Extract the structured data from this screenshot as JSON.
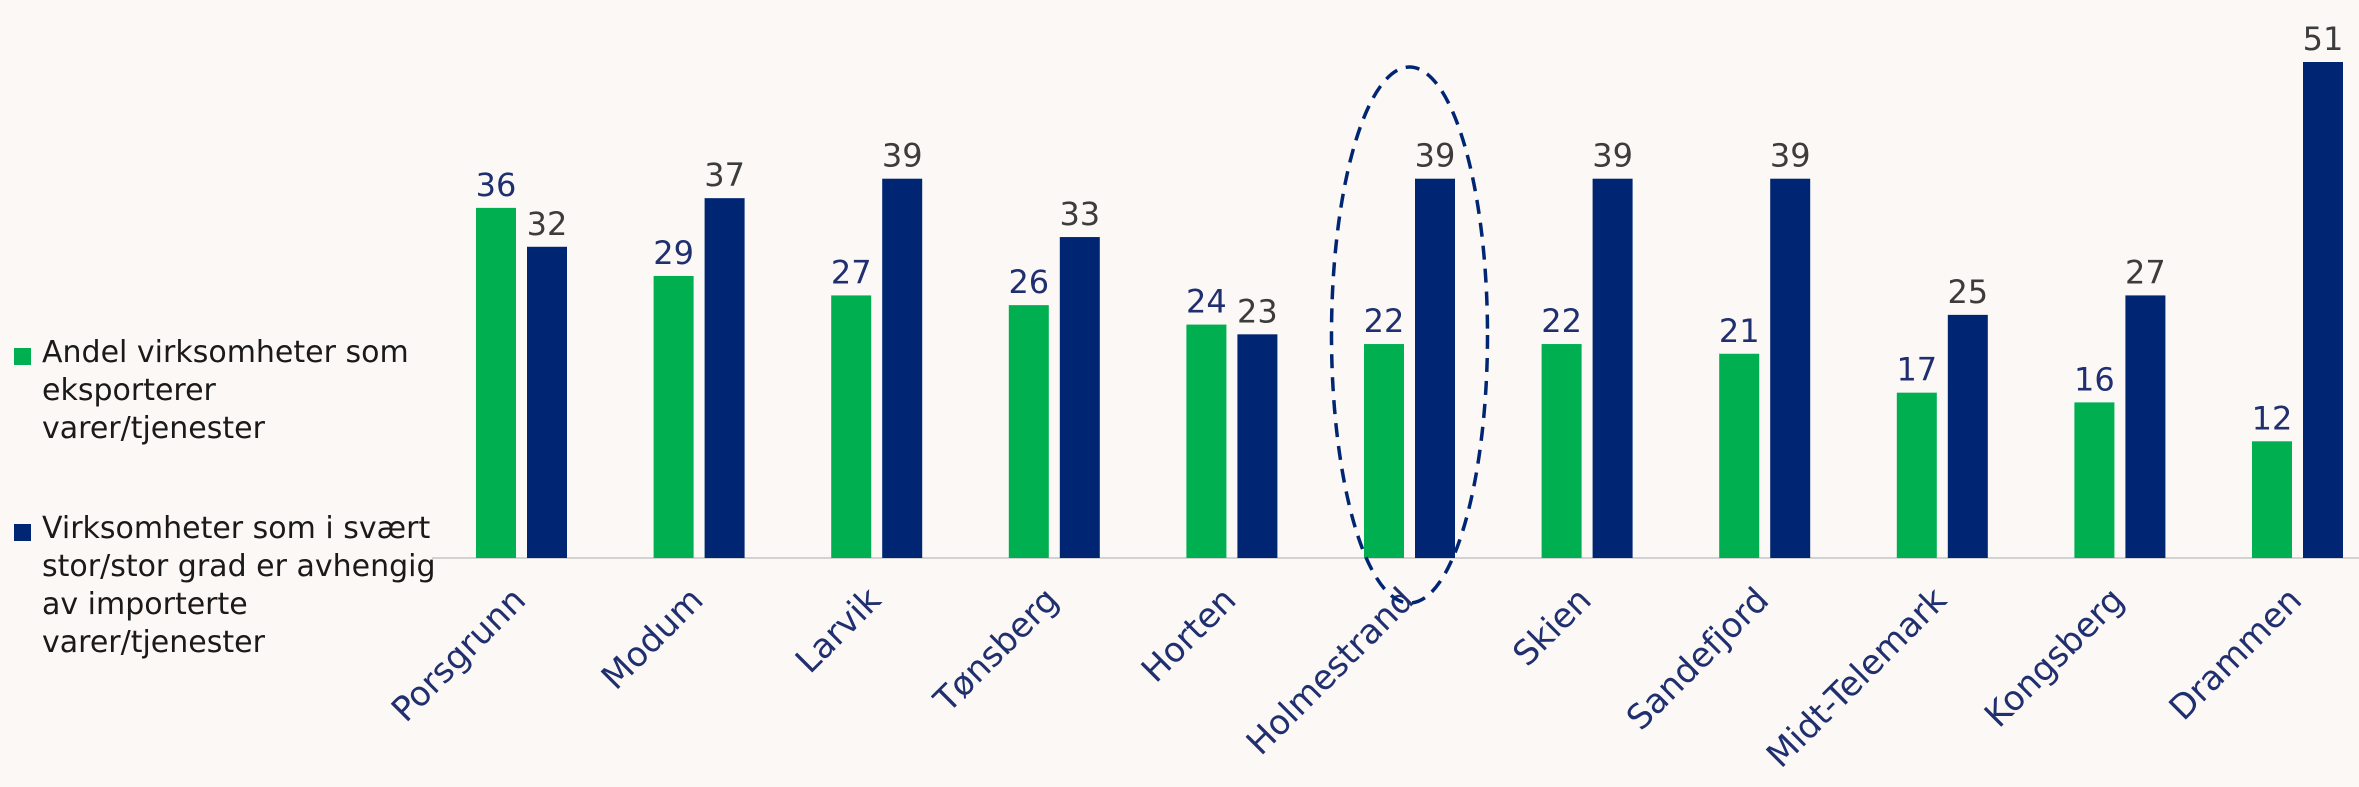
{
  "colors": {
    "background": "#fcf8f5",
    "series_export": "#00b050",
    "series_import": "#002673",
    "label_dark": "#3c3c3c",
    "label_navy": "#1f2f6f",
    "axis": "#d2d2d2"
  },
  "legend": {
    "items": [
      {
        "label": "Andel virksomheter som eksporterer varer/tjenester",
        "color": "#00b050"
      },
      {
        "label": "Virksomheter som i svært stor/stor grad er avhengig av importerte varer/tjenester",
        "color": "#002673"
      }
    ]
  },
  "chart_data": {
    "type": "bar",
    "categories": [
      "Porsgrunn",
      "Modum",
      "Larvik",
      "Tønsberg",
      "Horten",
      "Holmestrand",
      "Skien",
      "Sandefjord",
      "Midt-Telemark",
      "Kongsberg",
      "Drammen"
    ],
    "series": [
      {
        "name": "Andel virksomheter som eksporterer varer/tjenester",
        "color": "#00b050",
        "values": [
          36,
          29,
          27,
          26,
          24,
          22,
          22,
          21,
          17,
          16,
          12
        ]
      },
      {
        "name": "Virksomheter som i svært stor/stor grad er avhengig av importerte varer/tjenester",
        "color": "#002673",
        "values": [
          32,
          37,
          39,
          33,
          23,
          39,
          39,
          39,
          25,
          27,
          51
        ]
      }
    ],
    "ylim": [
      0,
      51
    ],
    "grid": false,
    "data_labels": true,
    "legend_position": "left",
    "highlight": {
      "category": "Holmestrand",
      "style": "dashed-ellipse"
    }
  }
}
